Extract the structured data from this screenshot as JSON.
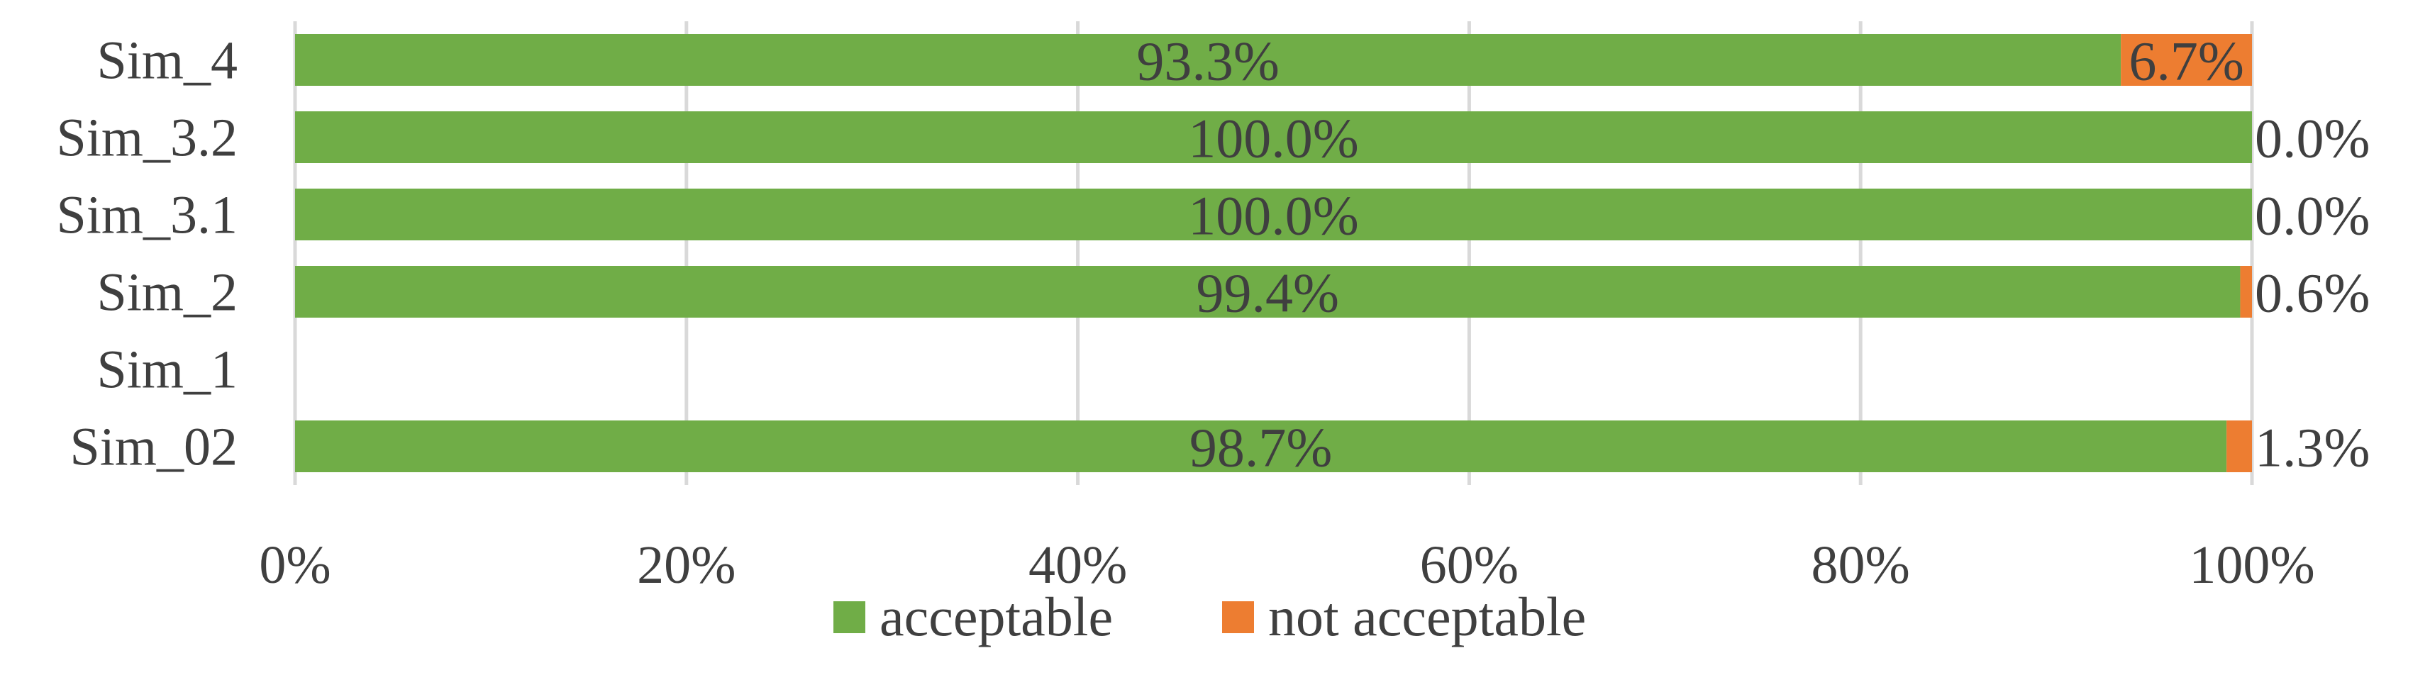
{
  "chart_data": {
    "type": "bar",
    "orientation": "horizontal",
    "stacked": "percent",
    "categories": [
      "Sim_4",
      "Sim_3.2",
      "Sim_3.1",
      "Sim_2",
      "Sim_1",
      "Sim_02"
    ],
    "series": [
      {
        "name": "acceptable",
        "color": "#70ad47",
        "values": [
          93.3,
          100.0,
          100.0,
          99.4,
          null,
          98.7
        ],
        "labels": [
          "93.3%",
          "100.0%",
          "100.0%",
          "99.4%",
          "",
          "98.7%"
        ]
      },
      {
        "name": "not acceptable",
        "color": "#ed7d31",
        "values": [
          6.7,
          0.0,
          0.0,
          0.6,
          null,
          1.3
        ],
        "labels": [
          "6.7%",
          "0.0%",
          "0.0%",
          "0.6%",
          "",
          "1.3%"
        ]
      }
    ],
    "xlim": [
      0,
      100
    ],
    "xticks": [
      "0%",
      "20%",
      "40%",
      "60%",
      "80%",
      "100%"
    ],
    "grid": true,
    "legend": "bottom",
    "title": "",
    "xlabel": "",
    "ylabel": ""
  }
}
